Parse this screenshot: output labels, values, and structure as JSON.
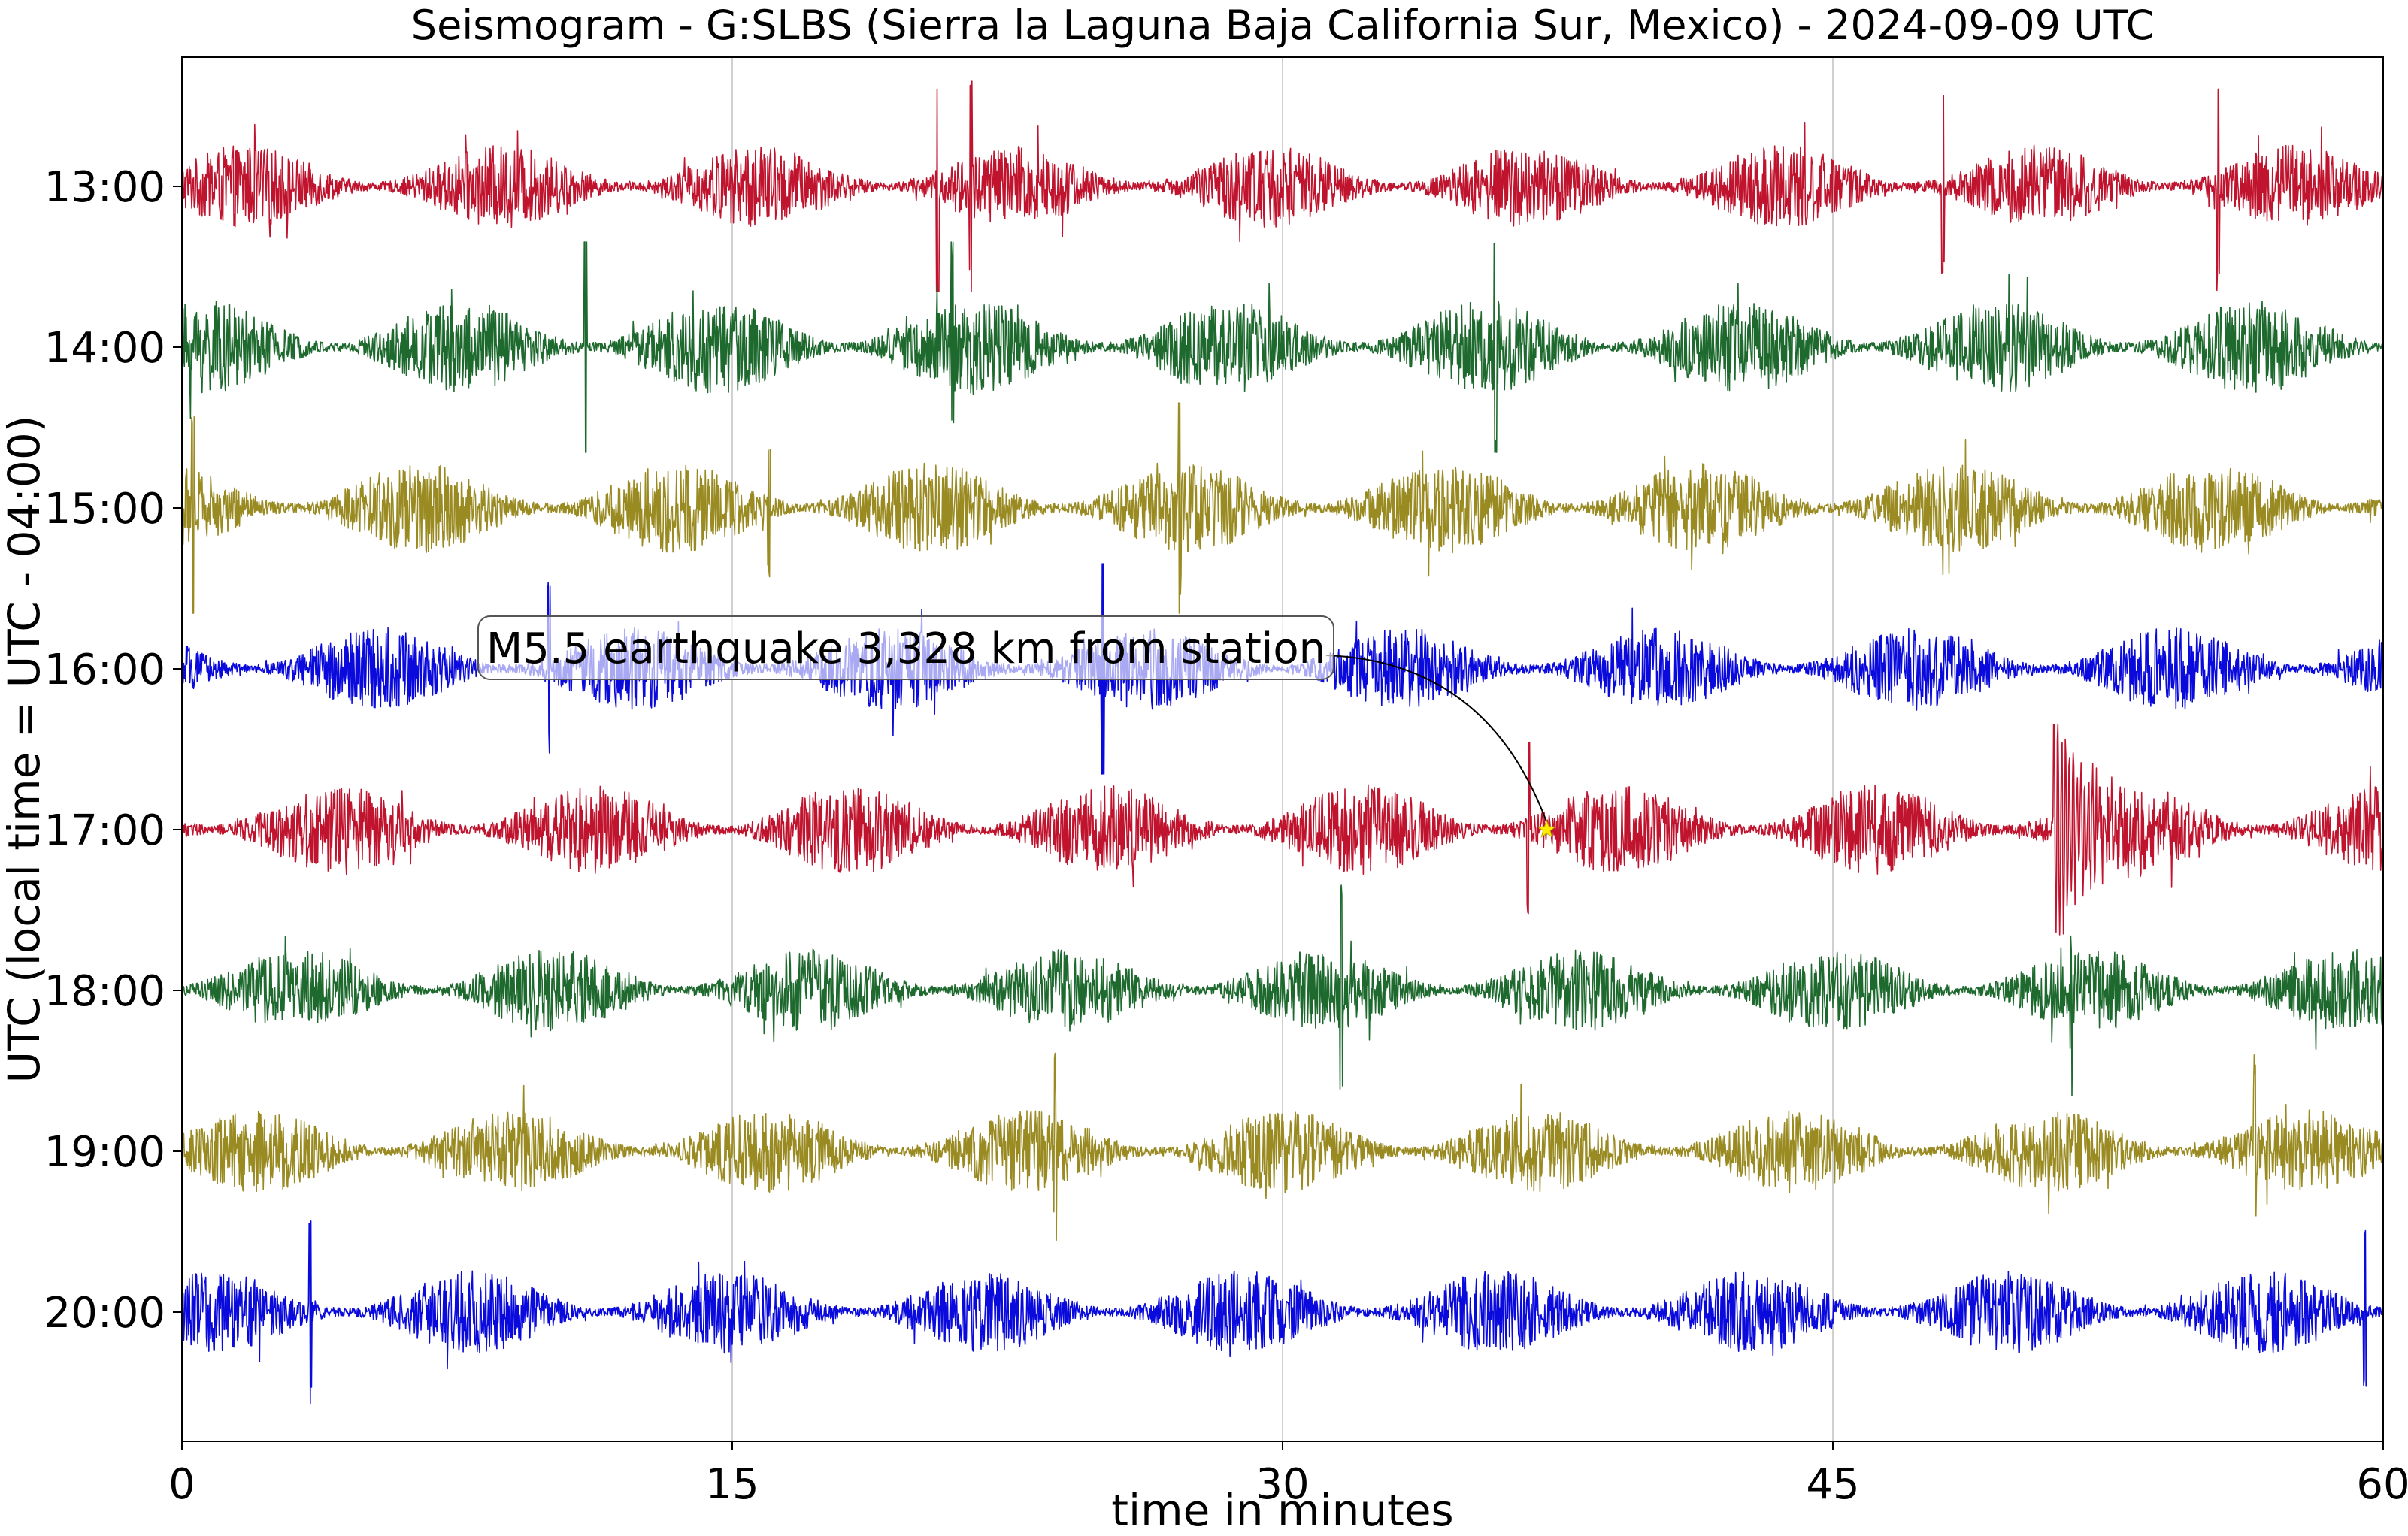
{
  "chart_data": {
    "type": "line",
    "title": "Seismogram - G:SLBS (Sierra la Laguna Baja California Sur, Mexico) - 2024-09-09 UTC",
    "xlabel": "time in minutes",
    "ylabel": "UTC (local time = UTC - 04:00)",
    "xlim": [
      0,
      60
    ],
    "x_ticks": [
      0,
      15,
      30,
      45,
      60
    ],
    "grid": "vertical",
    "traces": [
      {
        "label": "13:00",
        "color": "#c0142e",
        "noise": 0.55,
        "events": [
          {
            "t": 20.6,
            "amp": 1.5
          },
          {
            "t": 21.5,
            "amp": 1.3
          },
          {
            "t": 48.0,
            "amp": 1.1
          },
          {
            "t": 55.5,
            "amp": 1.3
          }
        ]
      },
      {
        "label": "14:00",
        "color": "#1e6a2e",
        "noise": 0.62,
        "events": [
          {
            "t": 11.0,
            "amp": 1.7
          },
          {
            "t": 21.0,
            "amp": 1.5
          },
          {
            "t": 35.8,
            "amp": 1.6
          }
        ]
      },
      {
        "label": "15:00",
        "color": "#9a8a22",
        "noise": 0.6,
        "events": [
          {
            "t": 0.3,
            "amp": 1.3
          },
          {
            "t": 27.2,
            "amp": 1.4
          },
          {
            "t": 16.0,
            "amp": 0.9
          }
        ]
      },
      {
        "label": "16:00",
        "color": "#0a0adc",
        "noise": 0.55,
        "events": [
          {
            "t": 25.1,
            "amp": 2.2
          },
          {
            "t": 10.0,
            "amp": 1.0
          }
        ]
      },
      {
        "label": "17:00",
        "color": "#c0142e",
        "noise": 0.6,
        "events": [
          {
            "t": 36.7,
            "amp": 1.0
          },
          {
            "t": 51.0,
            "amp": 1.8,
            "burst": 1.6
          }
        ]
      },
      {
        "label": "18:00",
        "color": "#1e6a2e",
        "noise": 0.55,
        "events": [
          {
            "t": 31.6,
            "amp": 1.5
          },
          {
            "t": 51.5,
            "amp": 1.0
          }
        ]
      },
      {
        "label": "19:00",
        "color": "#9a8a22",
        "noise": 0.55,
        "events": [
          {
            "t": 23.8,
            "amp": 1.0
          },
          {
            "t": 56.5,
            "amp": 1.0
          }
        ]
      },
      {
        "label": "20:00",
        "color": "#0a0adc",
        "noise": 0.55,
        "events": [
          {
            "t": 3.5,
            "amp": 1.1
          },
          {
            "t": 59.5,
            "amp": 1.0
          }
        ]
      }
    ],
    "annotation": {
      "text": "M5.5 earthquake 3,328 km from station",
      "trace": "17:00",
      "t": 37.2,
      "marker": "star",
      "marker_color": "#ffee00"
    }
  }
}
